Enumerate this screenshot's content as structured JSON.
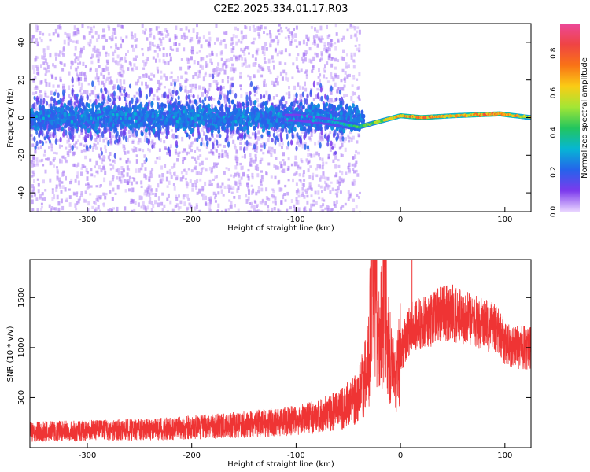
{
  "title": "C2E2.2025.334.01.17.R03",
  "chart_data": [
    {
      "type": "heatmap",
      "title": "C2E2.2025.334.01.17.R03",
      "xlabel": "Height of straight line (km)",
      "ylabel": "Frequency (Hz)",
      "xlim": [
        -355,
        125
      ],
      "ylim": [
        -50,
        50
      ],
      "xticks": [
        -300,
        -200,
        -100,
        0,
        100
      ],
      "yticks": [
        -40,
        -20,
        0,
        20,
        40
      ],
      "colorbar": {
        "label": "Normalized spectral amplitude",
        "range": [
          0.0,
          0.95
        ],
        "ticks": [
          0.0,
          0.2,
          0.4,
          0.6,
          0.8
        ],
        "colormap": [
          "#e9d5ff",
          "#7c3aed",
          "#2563eb",
          "#06b6d4",
          "#22c55e",
          "#a3e635",
          "#facc15",
          "#f97316",
          "#ef4444",
          "#ec4899"
        ]
      },
      "ridge": [
        {
          "x": -355,
          "freq": 0,
          "amp": 0.2
        },
        {
          "x": -200,
          "freq": 0,
          "amp": 0.2
        },
        {
          "x": -100,
          "freq": 0,
          "amp": 0.25
        },
        {
          "x": -70,
          "freq": -2,
          "amp": 0.3
        },
        {
          "x": -50,
          "freq": -4,
          "amp": 0.4
        },
        {
          "x": -40,
          "freq": -5,
          "amp": 0.5
        },
        {
          "x": -20,
          "freq": -2,
          "amp": 0.6
        },
        {
          "x": 0,
          "freq": 1,
          "amp": 0.75
        },
        {
          "x": 20,
          "freq": 0,
          "amp": 0.85
        },
        {
          "x": 50,
          "freq": 1,
          "amp": 0.7
        },
        {
          "x": 95,
          "freq": 2,
          "amp": 0.85
        },
        {
          "x": 125,
          "freq": 0,
          "amp": 0.6
        }
      ]
    },
    {
      "type": "line",
      "xlabel": "Height of straight line (km)",
      "ylabel": "SNR (10 * v/v)",
      "xlim": [
        -355,
        125
      ],
      "ylim": [
        0,
        1880
      ],
      "xticks": [
        -300,
        -200,
        -100,
        0,
        100
      ],
      "yticks": [
        500,
        1000,
        1500
      ],
      "color": "#ef3434",
      "series": [
        {
          "name": "SNR",
          "x": [
            -355,
            -300,
            -250,
            -200,
            -150,
            -100,
            -75,
            -60,
            -50,
            -40,
            -35,
            -30,
            -28,
            -20,
            -15,
            -10,
            -5,
            0,
            10,
            20,
            30,
            40,
            50,
            60,
            75,
            90,
            100,
            110,
            125
          ],
          "y": [
            160,
            170,
            180,
            200,
            230,
            270,
            320,
            380,
            430,
            520,
            680,
            900,
            1850,
            1050,
            1500,
            900,
            600,
            950,
            1200,
            1250,
            1280,
            1350,
            1330,
            1300,
            1250,
            1200,
            1050,
            1000,
            1000
          ]
        }
      ],
      "spikes": [
        {
          "x": -28,
          "y": 1850
        },
        {
          "x": -15,
          "y": 1800
        },
        {
          "x": 11,
          "y": 1880
        },
        {
          "x": 50,
          "y": 1630
        }
      ]
    }
  ]
}
